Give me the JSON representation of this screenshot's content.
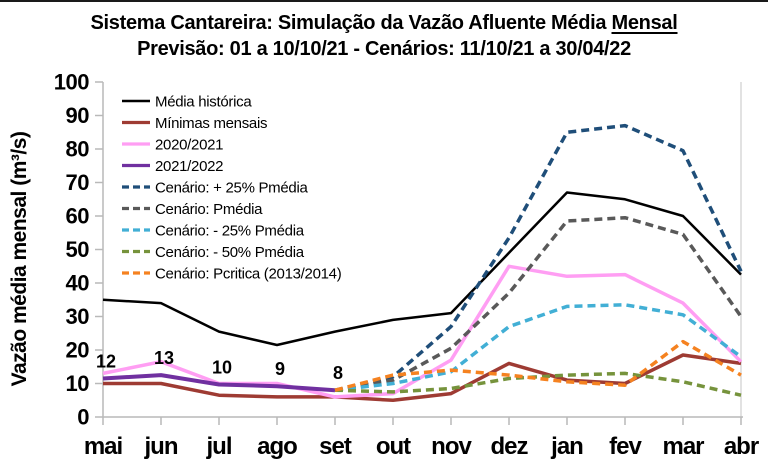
{
  "chart_data": {
    "type": "line",
    "title": "Sistema Cantareira: Simulação da Vazão Afluente Média Mensal",
    "title_main": "Sistema Cantareira: Simulação da Vazão Afluente Média ",
    "title_underlined": "Mensal",
    "subtitle": "Previsão: 01 a 10/10/21 - Cenários: 11/10/21 a 30/04/22",
    "ylabel": "Vazão média mensal (m³/s)",
    "xlabel": "",
    "ylim": [
      0,
      100
    ],
    "ytick_step": 10,
    "grid": false,
    "legend_position": "top-left-inside",
    "categories": [
      "mai",
      "jun",
      "jul",
      "ago",
      "set",
      "out",
      "nov",
      "dez",
      "jan",
      "fev",
      "mar",
      "abr"
    ],
    "series": [
      {
        "id": "media-historica",
        "name": "Média histórica",
        "color": "#000000",
        "dashed": false,
        "width": 2.5,
        "values": [
          35,
          34,
          25.5,
          21.5,
          25.5,
          29,
          31,
          49,
          67,
          65,
          60,
          42.5
        ]
      },
      {
        "id": "minimas-mensais",
        "name": "Mínimas mensais",
        "color": "#9E3B33",
        "dashed": false,
        "width": 3.5,
        "values": [
          10,
          10,
          6.5,
          6,
          6,
          5,
          7,
          16,
          11,
          10,
          18.5,
          16
        ]
      },
      {
        "id": "2020-2021",
        "name": "2020/2021",
        "color": "#FF9EF3",
        "dashed": false,
        "width": 3.5,
        "values": [
          13,
          16.5,
          10,
          10,
          6,
          7,
          17,
          45,
          42,
          42.5,
          34,
          16.5
        ]
      },
      {
        "id": "2021-2022",
        "name": "2021/2022",
        "color": "#7030A0",
        "dashed": false,
        "width": 4,
        "values": [
          11.5,
          12.5,
          9.7,
          9.2,
          8,
          null,
          null,
          null,
          null,
          null,
          null,
          null
        ],
        "point_labels": [
          "12",
          "13",
          "10",
          "9",
          "8",
          null,
          null,
          null,
          null,
          null,
          null,
          null
        ]
      },
      {
        "id": "cenario-p25",
        "name": "Cenário: + 25% Pmédia",
        "color": "#1F4E79",
        "dashed": true,
        "width": 3.5,
        "values": [
          null,
          null,
          null,
          null,
          8,
          12,
          27,
          53.5,
          85,
          87,
          79.5,
          43.5
        ]
      },
      {
        "id": "cenario-pmedia",
        "name": "Cenário: Pmédia",
        "color": "#595959",
        "dashed": true,
        "width": 3.5,
        "values": [
          null,
          null,
          null,
          null,
          8,
          11,
          20.5,
          37,
          58.5,
          59.5,
          54.5,
          30
        ]
      },
      {
        "id": "cenario-m25",
        "name": "Cenário: - 25% Pmédia",
        "color": "#42AFD5",
        "dashed": true,
        "width": 3.5,
        "values": [
          null,
          null,
          null,
          null,
          8,
          10,
          13.5,
          27,
          33,
          33.5,
          30.5,
          18
        ]
      },
      {
        "id": "cenario-m50",
        "name": "Cenário: - 50% Pmédia",
        "color": "#76933C",
        "dashed": true,
        "width": 3.5,
        "values": [
          null,
          null,
          null,
          null,
          8,
          7.5,
          8.5,
          11.5,
          12.5,
          13,
          10.5,
          6.5
        ]
      },
      {
        "id": "cenario-pcritica",
        "name": "Cenário: Pcritica (2013/2014)",
        "color": "#F58220",
        "dashed": true,
        "width": 3.5,
        "values": [
          null,
          null,
          null,
          null,
          8,
          12.5,
          14,
          12.5,
          10.5,
          9.5,
          22.5,
          12.5
        ]
      }
    ]
  }
}
